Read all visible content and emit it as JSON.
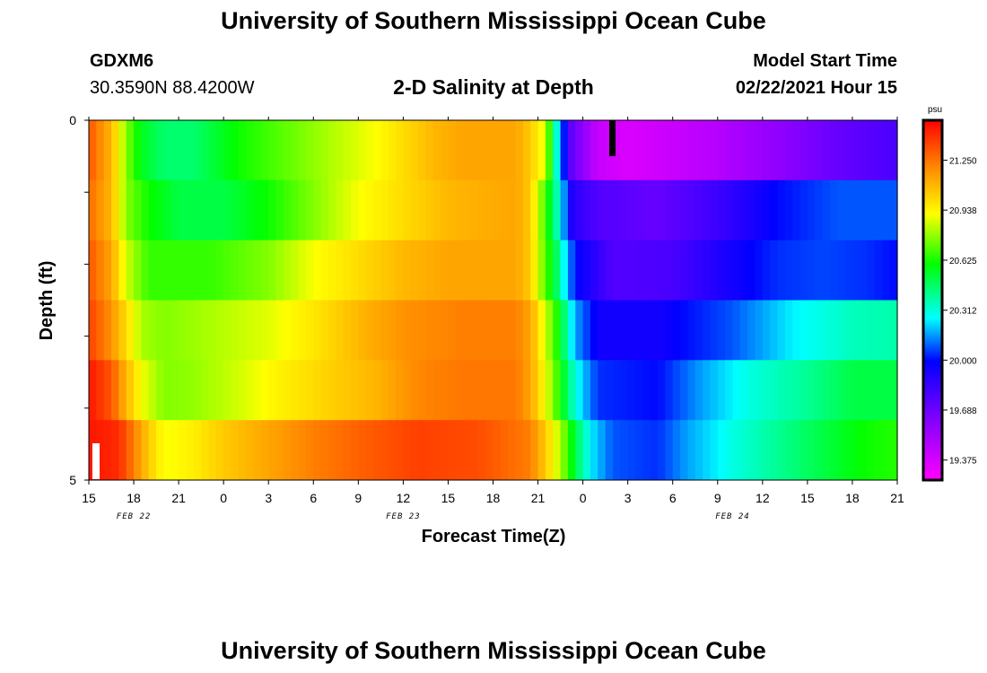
{
  "header": {
    "title": "University of Southern Mississippi Ocean Cube",
    "footer_title": "University of Southern Mississippi Ocean Cube",
    "station_id": "GDXM6",
    "coords": "30.3590N 88.4200W",
    "plot_title": "2-D Salinity at Depth",
    "start_label": "Model Start Time",
    "start_value": "02/22/2021 Hour 15"
  },
  "chart_data": {
    "type": "heatmap",
    "title": "2-D Salinity at Depth",
    "xlabel": "Forecast Time(Z)",
    "ylabel": "Depth (ft)",
    "x_tick_labels": [
      "15",
      "18",
      "21",
      "0",
      "3",
      "6",
      "9",
      "12",
      "15",
      "18",
      "21",
      "0",
      "3",
      "6",
      "9",
      "12",
      "15",
      "18",
      "21"
    ],
    "date_labels": [
      {
        "label": "FEB 22",
        "hour": 3
      },
      {
        "label": "FEB 23",
        "hour": 21
      },
      {
        "label": "FEB 24",
        "hour": 43
      }
    ],
    "xlim_hours": [
      0,
      54
    ],
    "y_tick_labels": [
      "0",
      "5"
    ],
    "ylim": [
      0,
      5
    ],
    "colorbar": {
      "unit": "psu",
      "range": [
        19.25,
        21.5
      ],
      "tick_values": [
        21.25,
        20.938,
        20.625,
        20.312,
        20.0,
        19.688,
        19.375
      ],
      "tick_labels": [
        "21.250",
        "20.938",
        "20.625",
        "20.312",
        "20.000",
        "19.688",
        "19.375"
      ],
      "colors": [
        "#ff00ff",
        "#8800ff",
        "#0000ff",
        "#00ffff",
        "#00ff00",
        "#ffff00",
        "#ff8800",
        "#ff0000"
      ]
    },
    "layers": [
      {
        "depth_index": 0,
        "keyframes": [
          [
            0,
            21.3
          ],
          [
            1.5,
            21.05
          ],
          [
            2.5,
            20.7
          ],
          [
            3.5,
            20.5
          ],
          [
            5,
            20.4
          ],
          [
            7,
            20.4
          ],
          [
            8,
            20.45
          ],
          [
            10,
            20.55
          ],
          [
            13,
            20.65
          ],
          [
            16,
            20.75
          ],
          [
            19,
            20.85
          ],
          [
            21,
            20.95
          ],
          [
            23,
            21.05
          ],
          [
            25,
            21.1
          ],
          [
            28.5,
            21.1
          ],
          [
            29.5,
            21.0
          ],
          [
            30.5,
            20.8
          ],
          [
            31.2,
            20.3
          ],
          [
            31.6,
            20.05
          ],
          [
            32,
            19.7
          ],
          [
            34,
            19.4
          ],
          [
            36,
            19.35
          ],
          [
            38,
            19.38
          ],
          [
            42,
            19.45
          ],
          [
            46,
            19.55
          ],
          [
            50,
            19.65
          ],
          [
            54,
            19.72
          ]
        ]
      },
      {
        "depth_index": 1,
        "keyframes": [
          [
            0,
            21.25
          ],
          [
            1.5,
            21.05
          ],
          [
            2.5,
            20.7
          ],
          [
            4,
            20.55
          ],
          [
            6,
            20.45
          ],
          [
            9,
            20.45
          ],
          [
            12,
            20.55
          ],
          [
            15,
            20.7
          ],
          [
            18,
            20.85
          ],
          [
            21,
            20.95
          ],
          [
            24,
            21.05
          ],
          [
            28.5,
            21.1
          ],
          [
            29.5,
            21.0
          ],
          [
            30.5,
            20.6
          ],
          [
            31.3,
            20.3
          ],
          [
            32.3,
            19.8
          ],
          [
            34,
            19.7
          ],
          [
            38,
            19.65
          ],
          [
            42,
            19.75
          ],
          [
            46,
            19.9
          ],
          [
            50,
            20.0
          ],
          [
            54,
            20.0
          ]
        ]
      },
      {
        "depth_index": 2,
        "keyframes": [
          [
            0,
            21.3
          ],
          [
            1.5,
            21.1
          ],
          [
            2.5,
            20.8
          ],
          [
            4,
            20.6
          ],
          [
            8,
            20.6
          ],
          [
            12,
            20.7
          ],
          [
            15,
            20.85
          ],
          [
            18,
            20.95
          ],
          [
            21,
            21.05
          ],
          [
            24,
            21.1
          ],
          [
            28.5,
            21.1
          ],
          [
            29.5,
            21.0
          ],
          [
            30.3,
            20.7
          ],
          [
            31.3,
            20.4
          ],
          [
            32.5,
            19.9
          ],
          [
            35,
            19.7
          ],
          [
            39,
            19.72
          ],
          [
            43,
            19.85
          ],
          [
            46,
            19.95
          ],
          [
            49,
            19.98
          ],
          [
            52,
            19.95
          ],
          [
            54,
            19.9
          ]
        ]
      },
      {
        "depth_index": 3,
        "keyframes": [
          [
            0,
            21.35
          ],
          [
            1.5,
            21.15
          ],
          [
            2.5,
            20.95
          ],
          [
            3.5,
            20.75
          ],
          [
            5,
            20.7
          ],
          [
            8,
            20.75
          ],
          [
            12,
            20.82
          ],
          [
            15,
            20.92
          ],
          [
            18,
            21.05
          ],
          [
            21,
            21.15
          ],
          [
            25,
            21.2
          ],
          [
            28.5,
            21.2
          ],
          [
            29.5,
            21.1
          ],
          [
            30.5,
            20.8
          ],
          [
            31.5,
            20.5
          ],
          [
            32.5,
            20.1
          ],
          [
            34,
            19.85
          ],
          [
            38,
            19.85
          ],
          [
            43,
            20.0
          ],
          [
            47,
            20.2
          ],
          [
            51,
            20.3
          ],
          [
            54,
            20.32
          ]
        ]
      },
      {
        "depth_index": 4,
        "keyframes": [
          [
            0,
            21.45
          ],
          [
            1.5,
            21.3
          ],
          [
            2.5,
            21.05
          ],
          [
            3.5,
            20.85
          ],
          [
            5,
            20.7
          ],
          [
            7,
            20.72
          ],
          [
            10,
            20.8
          ],
          [
            13,
            20.9
          ],
          [
            16,
            20.98
          ],
          [
            19,
            21.05
          ],
          [
            22,
            21.18
          ],
          [
            25,
            21.22
          ],
          [
            28.5,
            21.22
          ],
          [
            29.5,
            21.1
          ],
          [
            30.5,
            20.85
          ],
          [
            31.5,
            20.55
          ],
          [
            32.5,
            20.25
          ],
          [
            34,
            19.95
          ],
          [
            38,
            19.9
          ],
          [
            41,
            20.1
          ],
          [
            44,
            20.25
          ],
          [
            48,
            20.35
          ],
          [
            51,
            20.45
          ],
          [
            54,
            20.45
          ]
        ]
      },
      {
        "depth_index": 5,
        "keyframes": [
          [
            0,
            21.45
          ],
          [
            2,
            21.4
          ],
          [
            3,
            21.2
          ],
          [
            4,
            21.0
          ],
          [
            5,
            20.85
          ],
          [
            7,
            20.9
          ],
          [
            9,
            21.0
          ],
          [
            12,
            21.1
          ],
          [
            15,
            21.2
          ],
          [
            18,
            21.27
          ],
          [
            22,
            21.35
          ],
          [
            26,
            21.32
          ],
          [
            29.5,
            21.2
          ],
          [
            30.5,
            21.0
          ],
          [
            31.5,
            20.75
          ],
          [
            32.5,
            20.45
          ],
          [
            33.5,
            20.2
          ],
          [
            35,
            20.0
          ],
          [
            38,
            19.95
          ],
          [
            40,
            20.1
          ],
          [
            43,
            20.25
          ],
          [
            46,
            20.35
          ],
          [
            49,
            20.45
          ],
          [
            52,
            20.55
          ],
          [
            54,
            20.58
          ]
        ]
      }
    ]
  }
}
